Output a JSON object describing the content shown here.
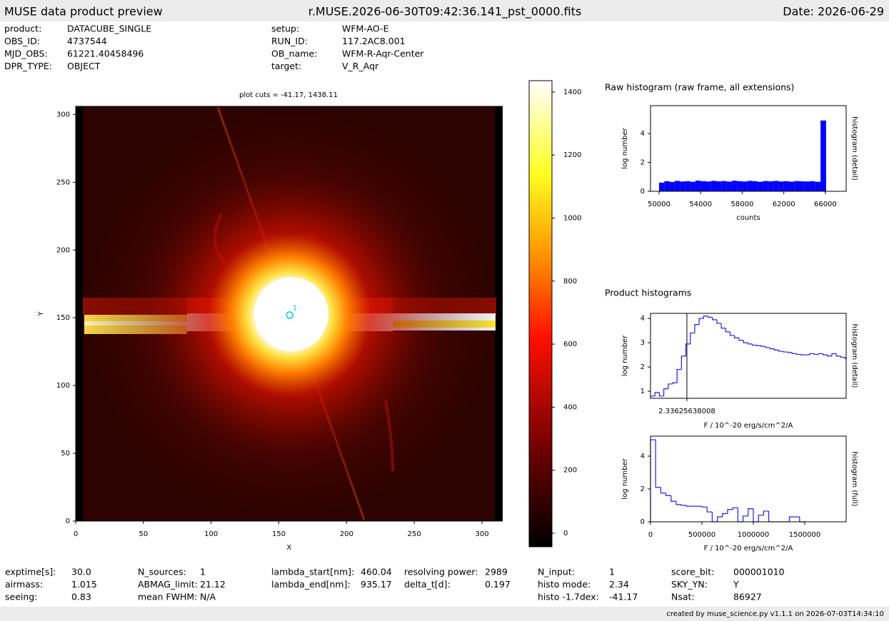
{
  "header": {
    "left": "MUSE data product preview",
    "center": "r.MUSE.2026-06-30T09:42:36.141_pst_0000.fits",
    "right": "Date: 2026-06-29"
  },
  "meta": [
    [
      [
        "product:",
        "DATACUBE_SINGLE"
      ],
      [
        "OBS_ID:",
        "4737544"
      ],
      [
        "MJD_OBS:",
        "61221.40458496"
      ],
      [
        "DPR_TYPE:",
        "OBJECT"
      ]
    ],
    [
      [
        "setup:",
        "WFM-AO-E"
      ],
      [
        "RUN_ID:",
        "117.2AC8.001"
      ],
      [
        "OB_name:",
        "WFM-R-Aqr-Center"
      ],
      [
        "target:",
        "V_R_Aqr"
      ]
    ]
  ],
  "product_histograms_title": "Product histograms",
  "stats": [
    [
      [
        "exptime[s]:",
        "30.0"
      ],
      [
        "airmass:",
        "1.015"
      ],
      [
        "seeing:",
        "0.83"
      ]
    ],
    [
      [
        "N_sources:",
        "1"
      ],
      [
        "ABMAG_limit:",
        "21.12"
      ],
      [
        "mean FWHM:",
        "N/A"
      ]
    ],
    [
      [
        "lambda_start[nm]:",
        "460.04"
      ],
      [
        "lambda_end[nm]:",
        "935.17"
      ]
    ],
    [
      [
        "resolving power:",
        "2989"
      ],
      [
        "delta_t[d]:",
        "0.197"
      ]
    ],
    [
      [
        "N_input:",
        "1"
      ],
      [
        "histo mode:",
        "2.34"
      ],
      [
        "histo -1.7dex:",
        "-41.17"
      ]
    ],
    [
      [
        "score_bit:",
        "000001010"
      ],
      [
        "SKY_YN:",
        "Y"
      ],
      [
        "Nsat:",
        "86927"
      ]
    ]
  ],
  "footer": "created by muse_science.py v1.1.1 on 2026-07-03T14:34:10",
  "chart_data": [
    {
      "type": "image",
      "title": "plot cuts = -41.17, 1438.11",
      "xlabel": "X",
      "ylabel": "Y",
      "xlim": [
        0,
        315
      ],
      "ylim": [
        0,
        306
      ],
      "xticks": [
        0,
        50,
        100,
        150,
        200,
        250,
        300
      ],
      "yticks": [
        0,
        50,
        100,
        150,
        200,
        250,
        300
      ],
      "points": {
        "x": [
          158
        ],
        "y": [
          152
        ],
        "labels": [
          "1"
        ],
        "color": "#00c8c8"
      }
    },
    {
      "type": "colorbar",
      "ylim": [
        -43,
        1436
      ],
      "yticks": [
        0,
        200,
        400,
        600,
        800,
        1000,
        1200,
        1400
      ]
    },
    {
      "type": "bars",
      "title": "Raw histogram (raw frame, all extensions)",
      "xlabel": "counts",
      "ylabel": "log number",
      "y2label": "histogram (detail)",
      "color": "#0000ff",
      "xlim": [
        49176,
        68000
      ],
      "ylim": [
        0,
        5.93
      ],
      "xticks": [
        50000,
        54000,
        58000,
        62000,
        66000
      ],
      "yticks": [
        0,
        2,
        4
      ],
      "x": [
        50000,
        50500,
        51000,
        51500,
        52000,
        52500,
        53000,
        53500,
        54000,
        54500,
        55000,
        55500,
        56000,
        56500,
        57000,
        57500,
        58000,
        58500,
        59000,
        59500,
        60000,
        60500,
        61000,
        61500,
        62000,
        62500,
        63000,
        63500,
        64000,
        64500,
        65000,
        65535
      ],
      "values": [
        0.6,
        0.7,
        0.65,
        0.72,
        0.68,
        0.7,
        0.66,
        0.74,
        0.7,
        0.68,
        0.72,
        0.69,
        0.71,
        0.67,
        0.73,
        0.7,
        0.68,
        0.72,
        0.7,
        0.66,
        0.71,
        0.69,
        0.72,
        0.68,
        0.7,
        0.67,
        0.71,
        0.69,
        0.68,
        0.7,
        0.66,
        4.9
      ]
    },
    {
      "type": "step",
      "xlabel": "F / 10^-20 erg/s/cm^2/A",
      "ylabel": "log number",
      "y2label": "histogram (detail)",
      "color": "#2020e0",
      "marker_line": true,
      "xlim": [
        -10,
        56.34
      ],
      "ylim": [
        0.71,
        4.21
      ],
      "xticks": [
        2.33625638008
      ],
      "yticks": [
        1,
        2,
        3,
        4
      ],
      "x": [
        -10,
        -8.5,
        -7,
        -5.5,
        -4,
        -2.5,
        -1,
        0.5,
        2,
        3.5,
        5,
        6.5,
        8,
        9.5,
        11,
        12.5,
        14,
        15.5,
        17,
        18.5,
        20,
        21.5,
        23,
        24.5,
        26,
        27.5,
        29,
        30.5,
        32,
        33.5,
        35,
        36.5,
        38,
        39.5,
        41,
        42.5,
        44,
        45.5,
        47,
        48.5,
        50,
        51.5,
        53,
        54.5,
        56
      ],
      "values": [
        0.8,
        0.95,
        0.8,
        1.1,
        1.3,
        1.35,
        1.9,
        2.45,
        2.95,
        3.4,
        3.75,
        4.0,
        4.1,
        4.05,
        3.95,
        3.8,
        3.6,
        3.45,
        3.3,
        3.2,
        3.1,
        3.0,
        2.95,
        2.9,
        2.88,
        2.85,
        2.8,
        2.75,
        2.7,
        2.65,
        2.62,
        2.6,
        2.55,
        2.52,
        2.5,
        2.5,
        2.55,
        2.52,
        2.55,
        2.5,
        2.45,
        2.55,
        2.45,
        2.4,
        2.35
      ]
    },
    {
      "type": "step",
      "xlabel": "F / 10^-20 erg/s/cm^2/A",
      "ylabel": "log number",
      "y2label": "histogram (full)",
      "color": "#2020e0",
      "xlim": [
        0,
        1902778
      ],
      "ylim": [
        0,
        5.22
      ],
      "xticks": [
        0,
        500000,
        1000000,
        1500000
      ],
      "yticks": [
        0,
        2,
        4
      ],
      "x": [
        0,
        50000,
        100000,
        150000,
        200000,
        250000,
        300000,
        350000,
        400000,
        450000,
        500000,
        550000,
        600000,
        650000,
        700000,
        750000,
        800000,
        850000,
        900000,
        950000,
        1000000,
        1050000,
        1100000,
        1150000,
        1200000,
        1250000,
        1300000,
        1350000,
        1400000,
        1450000
      ],
      "values": [
        5.0,
        2.1,
        1.75,
        1.6,
        1.25,
        1.05,
        1.0,
        0.95,
        0.95,
        0.95,
        0.9,
        0.6,
        0,
        0.3,
        0.5,
        0.75,
        0.85,
        0,
        0.35,
        0.8,
        0,
        0.4,
        0.65,
        0,
        0,
        0,
        0,
        0.3,
        0.3,
        0
      ]
    }
  ]
}
